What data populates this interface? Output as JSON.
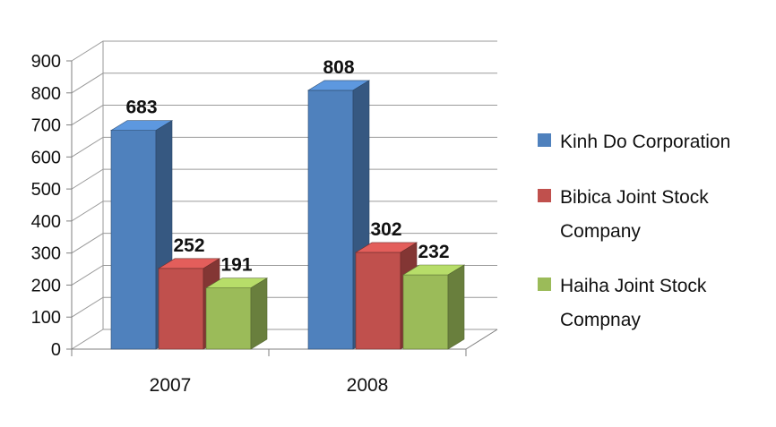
{
  "chart_data": {
    "type": "bar",
    "variant": "3d-clustered-column",
    "title": "",
    "categories": [
      "2007",
      "2008"
    ],
    "series": [
      {
        "name": "Kinh Do Corporation",
        "color": "#4F81BD",
        "values": [
          683,
          808
        ]
      },
      {
        "name": "Bibica Joint Stock Company",
        "color": "#C0504D",
        "values": [
          252,
          302
        ]
      },
      {
        "name": "Haiha Joint Stock Compnay",
        "color": "#9BBB59",
        "values": [
          191,
          232
        ]
      }
    ],
    "ylim": [
      0,
      900
    ],
    "ytick_step": 100,
    "ytick_labels": [
      "0",
      "100",
      "200",
      "300",
      "400",
      "500",
      "600",
      "700",
      "800",
      "900"
    ],
    "data_labels": true,
    "data_label_values": {
      "2007": [
        683,
        252,
        191
      ],
      "2008": [
        808,
        302,
        232
      ]
    },
    "grid": true,
    "legend_position": "right",
    "background": "#FFFFFF",
    "grid_color": "#9A9A9A",
    "axis_color": "#7F7F7F",
    "label_color": "#111111"
  }
}
